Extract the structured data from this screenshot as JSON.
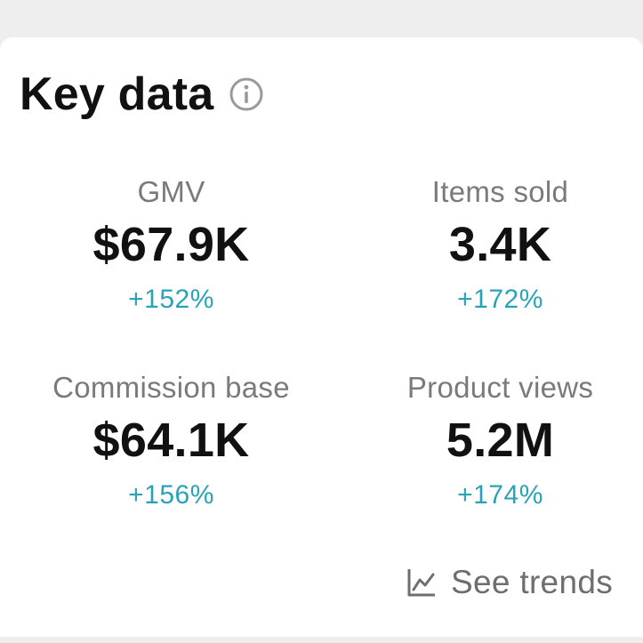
{
  "card": {
    "title": "Key data",
    "info_icon": "info-circle-icon"
  },
  "metrics": [
    {
      "label": "GMV",
      "value": "$67.9K",
      "delta": "+152%"
    },
    {
      "label": "Items sold",
      "value": "3.4K",
      "delta": "+172%"
    },
    {
      "label": "Commission base",
      "value": "$64.1K",
      "delta": "+156%"
    },
    {
      "label": "Product views",
      "value": "5.2M",
      "delta": "+174%"
    }
  ],
  "trends_link": {
    "label": "See trends",
    "icon": "line-chart-icon"
  },
  "colors": {
    "background": "#eeeeee",
    "card": "#ffffff",
    "title": "#111111",
    "label": "#7a7a7a",
    "delta_positive": "#2aa3b8"
  }
}
